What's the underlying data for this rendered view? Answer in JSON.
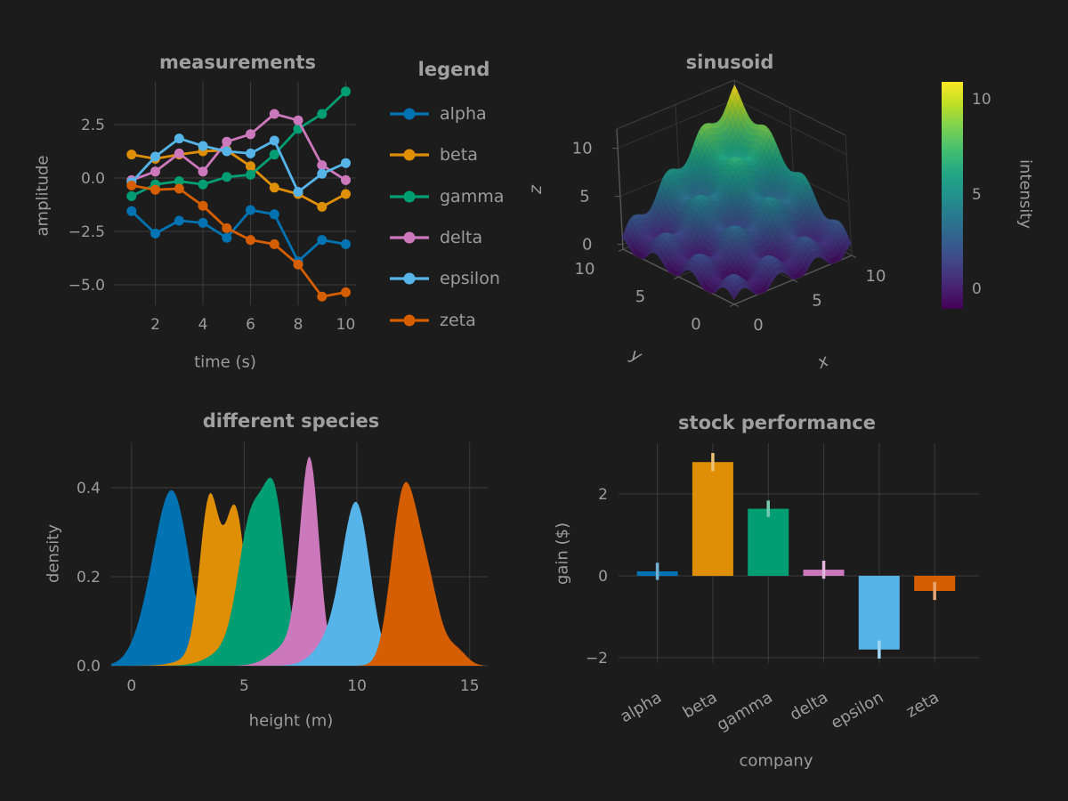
{
  "theme": {
    "background": "#1c1c1c",
    "text_color": "#9c9c9c",
    "title_color": "#a0a0a0",
    "grid_color": "#3c3c3c",
    "pane_line_color": "#343434",
    "axis3d_color": "#5a5a5a"
  },
  "palette": [
    "#0173b2",
    "#de8f05",
    "#029e73",
    "#cc78bc",
    "#56b4e9",
    "#d55e00"
  ],
  "chart_data": [
    {
      "type": "line",
      "title": "measurements",
      "xlabel": "time (s)",
      "ylabel": "amplitude",
      "legend_title": "legend",
      "xlim": [
        0.26,
        10.43
      ],
      "ylim": [
        -5.96,
        4.5
      ],
      "xtick_vals": [
        2,
        4,
        6,
        8,
        10
      ],
      "xtick_labels": [
        "2",
        "4",
        "6",
        "8",
        "10"
      ],
      "ytick_vals": [
        2.5,
        0,
        -2.5,
        -5
      ],
      "ytick_labels": [
        "2.5",
        "0.0",
        "−2.5",
        "−5.0"
      ],
      "x": [
        1,
        2,
        3,
        4,
        5,
        6,
        7,
        8,
        9,
        10
      ],
      "series": [
        {
          "name": "alpha",
          "color": "#0173b2",
          "values": [
            -1.55,
            -2.6,
            -2.0,
            -2.1,
            -2.8,
            -1.5,
            -1.7,
            -3.9,
            -2.9,
            -3.1
          ]
        },
        {
          "name": "beta",
          "color": "#de8f05",
          "values": [
            1.1,
            0.9,
            1.1,
            1.25,
            1.3,
            0.55,
            -0.45,
            -0.75,
            -1.35,
            -0.75
          ]
        },
        {
          "name": "gamma",
          "color": "#029e73",
          "values": [
            -0.85,
            -0.3,
            -0.15,
            -0.3,
            0.05,
            0.15,
            1.1,
            2.3,
            3.0,
            4.05
          ]
        },
        {
          "name": "delta",
          "color": "#cc78bc",
          "values": [
            -0.1,
            0.3,
            1.15,
            0.3,
            1.7,
            2.05,
            3.0,
            2.7,
            0.6,
            -0.1
          ]
        },
        {
          "name": "epsilon",
          "color": "#56b4e9",
          "values": [
            -0.2,
            1.0,
            1.85,
            1.5,
            1.25,
            1.15,
            1.75,
            -0.65,
            0.2,
            0.7
          ]
        },
        {
          "name": "zeta",
          "color": "#d55e00",
          "values": [
            -0.35,
            -0.55,
            -0.5,
            -1.3,
            -2.35,
            -2.9,
            -3.1,
            -4.05,
            -5.55,
            -5.35
          ]
        }
      ]
    },
    {
      "type": "surface3d",
      "title": "sinusoid",
      "xlabel": "x",
      "ylabel": "y",
      "zlabel": "z",
      "xtick_vals": [
        0,
        5,
        10
      ],
      "xtick_labels": [
        "0",
        "5",
        "10"
      ],
      "ytick_vals": [
        0,
        5,
        10
      ],
      "ytick_labels": [
        "0",
        "5",
        "10"
      ],
      "ztick_vals": [
        0,
        5,
        10
      ],
      "ztick_labels": [
        "0",
        "5",
        "10"
      ],
      "surface": {
        "formula": "z = x*y/10 + 0.8*(sin(2x) + sin(2y))",
        "xy_scale": 0.1,
        "wave_amp": 0.8,
        "wave_freq": 2,
        "x_range": [
          0,
          10
        ],
        "y_range": [
          0,
          10
        ],
        "z_axis_range": [
          -0.5,
          12
        ],
        "grid_n": 44,
        "colormap": "viridis"
      },
      "colorbar": {
        "label": "intensity",
        "range": [
          -1,
          11
        ],
        "tick_vals": [
          0,
          5,
          10
        ],
        "tick_labels": [
          "0",
          "5",
          "10"
        ]
      }
    },
    {
      "type": "area",
      "title": "different species",
      "xlabel": "height (m)",
      "ylabel": "density",
      "xlim": [
        -0.9,
        15.8
      ],
      "ylim": [
        0,
        0.502
      ],
      "xtick_vals": [
        0,
        5,
        10,
        15
      ],
      "xtick_labels": [
        "0",
        "5",
        "10",
        "15"
      ],
      "ytick_vals": [
        0,
        0.2,
        0.4
      ],
      "ytick_labels": [
        "0.0",
        "0.2",
        "0.4"
      ],
      "series": [
        {
          "color": "#0173b2",
          "components": [
            {
              "mu": 1.85,
              "sigma": 0.75,
              "amp": 0.37
            },
            {
              "mu": 0.8,
              "sigma": 0.7,
              "amp": 0.07
            }
          ]
        },
        {
          "color": "#de8f05",
          "components": [
            {
              "mu": 3.45,
              "sigma": 0.42,
              "amp": 0.33
            },
            {
              "mu": 4.6,
              "sigma": 0.45,
              "amp": 0.31
            },
            {
              "mu": 4.0,
              "sigma": 1.1,
              "amp": 0.05
            }
          ]
        },
        {
          "color": "#029e73",
          "components": [
            {
              "mu": 6.35,
              "sigma": 0.5,
              "amp": 0.355
            },
            {
              "mu": 5.3,
              "sigma": 0.55,
              "amp": 0.29
            },
            {
              "mu": 4.5,
              "sigma": 0.9,
              "amp": 0.04
            }
          ]
        },
        {
          "color": "#cc78bc",
          "components": [
            {
              "mu": 7.9,
              "sigma": 0.42,
              "amp": 0.44
            },
            {
              "mu": 7.1,
              "sigma": 0.8,
              "amp": 0.05
            }
          ]
        },
        {
          "color": "#56b4e9",
          "components": [
            {
              "mu": 10.0,
              "sigma": 0.6,
              "amp": 0.33
            },
            {
              "mu": 9.1,
              "sigma": 0.8,
              "amp": 0.07
            }
          ]
        },
        {
          "color": "#d55e00",
          "components": [
            {
              "mu": 11.9,
              "sigma": 0.5,
              "amp": 0.24
            },
            {
              "mu": 12.45,
              "sigma": 0.55,
              "amp": 0.22
            },
            {
              "mu": 13.25,
              "sigma": 0.5,
              "amp": 0.13
            },
            {
              "mu": 14.4,
              "sigma": 0.45,
              "amp": 0.035
            }
          ]
        }
      ]
    },
    {
      "type": "bar",
      "title": "stock performance",
      "xlabel": "company",
      "ylabel": "gain ($)",
      "categories": [
        "alpha",
        "beta",
        "gamma",
        "delta",
        "epsilon",
        "zeta"
      ],
      "values": [
        0.11,
        2.78,
        1.64,
        0.15,
        -1.8,
        -0.37
      ],
      "errors": [
        0.21,
        0.22,
        0.2,
        0.22,
        0.22,
        0.22
      ],
      "colors": [
        "#0173b2",
        "#de8f05",
        "#029e73",
        "#cc78bc",
        "#56b4e9",
        "#d55e00"
      ],
      "ylim": [
        -2.13,
        3.24
      ],
      "ytick_vals": [
        2,
        0,
        -2
      ],
      "ytick_labels": [
        "2",
        "0",
        "−2"
      ]
    }
  ]
}
